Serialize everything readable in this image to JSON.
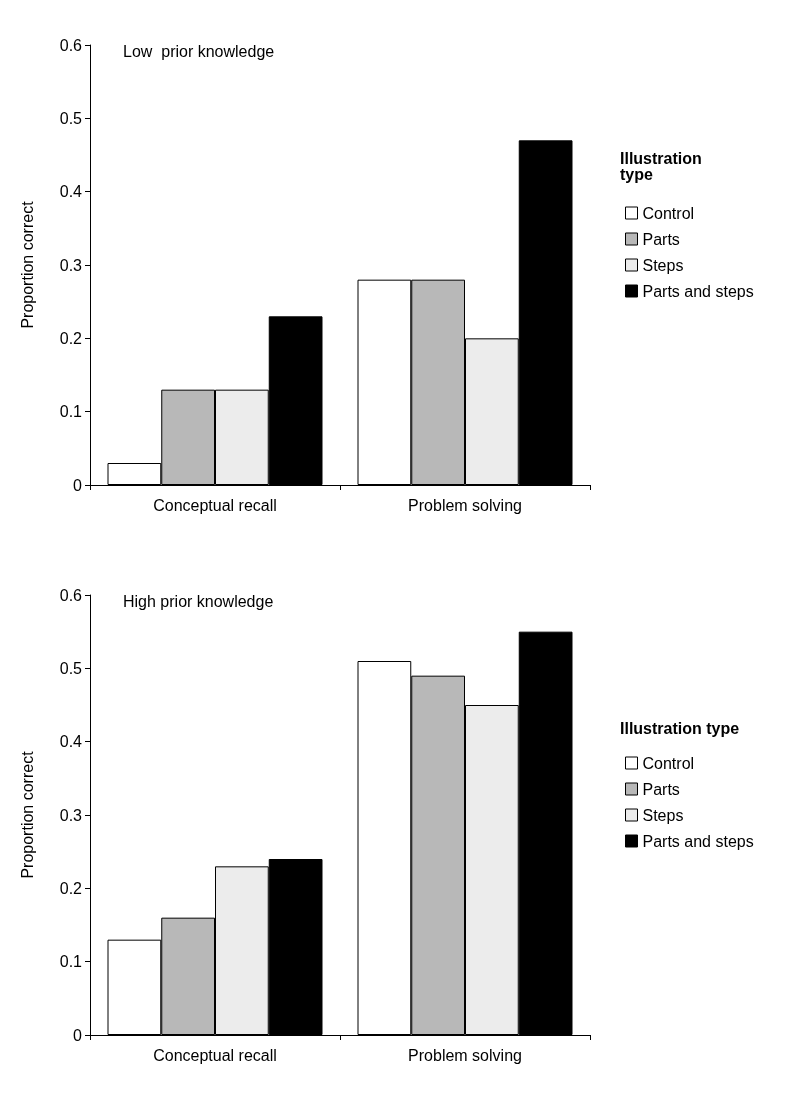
{
  "chart_data": [
    {
      "type": "bar",
      "title": "Low  prior knowledge",
      "ylabel": "Proportion correct",
      "legend_title": "Illustration type",
      "categories": [
        "Conceptual recall",
        "Problem solving"
      ],
      "series": [
        {
          "name": "Control",
          "color": "#ffffff",
          "values": [
            0.03,
            0.28
          ]
        },
        {
          "name": "Parts",
          "color": "#b8b8b8",
          "values": [
            0.13,
            0.28
          ]
        },
        {
          "name": "Steps",
          "color": "#ececec",
          "values": [
            0.13,
            0.2
          ]
        },
        {
          "name": "Parts and steps",
          "color": "#000000",
          "values": [
            0.23,
            0.47
          ]
        }
      ],
      "ylim": [
        0,
        0.6
      ],
      "yticks": [
        0,
        0.1,
        0.2,
        0.3,
        0.4,
        0.5,
        0.6
      ],
      "grid": false,
      "legend": "right"
    },
    {
      "type": "bar",
      "title": "High prior knowledge",
      "ylabel": "Proportion correct",
      "legend_title": "Illustration type",
      "categories": [
        "Conceptual recall",
        "Problem solving"
      ],
      "series": [
        {
          "name": "Control",
          "color": "#ffffff",
          "values": [
            0.13,
            0.51
          ]
        },
        {
          "name": "Parts",
          "color": "#b8b8b8",
          "values": [
            0.16,
            0.49
          ]
        },
        {
          "name": "Steps",
          "color": "#ececec",
          "values": [
            0.23,
            0.45
          ]
        },
        {
          "name": "Parts and steps",
          "color": "#000000",
          "values": [
            0.24,
            0.55
          ]
        }
      ],
      "ylim": [
        0,
        0.6
      ],
      "yticks": [
        0,
        0.1,
        0.2,
        0.3,
        0.4,
        0.5,
        0.6
      ],
      "grid": false,
      "legend": "right"
    }
  ]
}
